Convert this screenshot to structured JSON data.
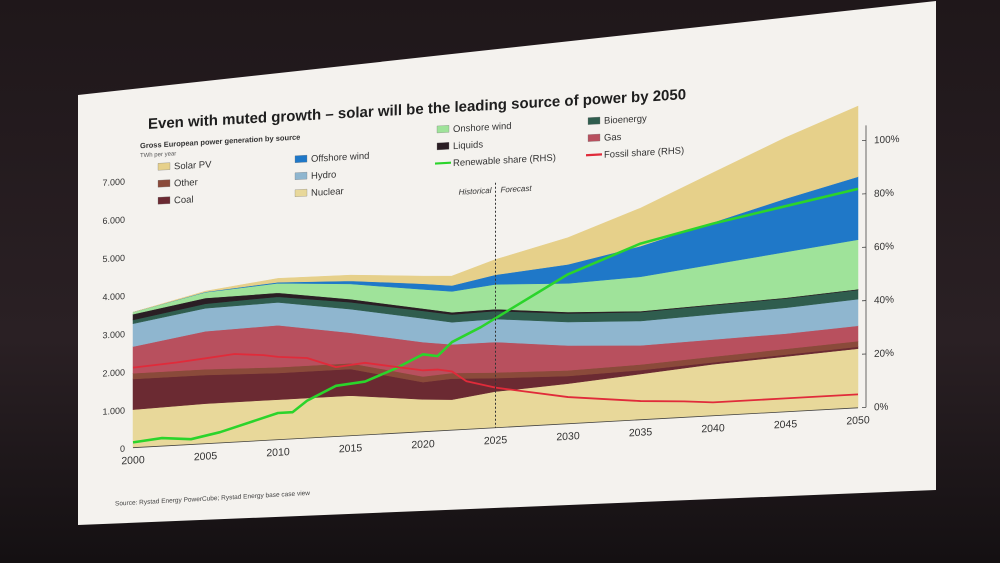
{
  "slide": {
    "title": "Even with muted growth – solar will be the leading source of power by 2050",
    "subtitle": "Gross European power generation by source",
    "unit": "TWh per year",
    "source": "Source: Rystad Energy PowerCube; Rystad Energy base case view",
    "historical_label": "Historical",
    "forecast_label": "Forecast"
  },
  "colors": {
    "nuclear": "#e8d89a",
    "coal": "#6b2a32",
    "other": "#8a4a3a",
    "gas": "#b8505e",
    "hydro": "#8fb6cf",
    "bioenergy": "#2f5d4e",
    "liquids": "#2a1e24",
    "onshore_wind": "#9fe39a",
    "offshore_wind": "#1f78c8",
    "solar_pv": "#e6d08a",
    "renewable_line": "#2bd42b",
    "fossil_line": "#e02b3a"
  },
  "chart_data": {
    "type": "area",
    "x": [
      2000,
      2005,
      2010,
      2015,
      2020,
      2022,
      2025,
      2030,
      2035,
      2040,
      2045,
      2050
    ],
    "xlim": [
      2000,
      2050
    ],
    "ylim": [
      0,
      7000
    ],
    "ylim_right": [
      0,
      100
    ],
    "x_ticks": [
      2000,
      2005,
      2010,
      2015,
      2020,
      2025,
      2030,
      2035,
      2040,
      2045,
      2050
    ],
    "y_ticks": [
      0,
      1000,
      2000,
      3000,
      4000,
      5000,
      6000,
      7000
    ],
    "y_tick_labels": [
      "0",
      "1.000",
      "2.000",
      "3.000",
      "4.000",
      "5.000",
      "6.000",
      "7.000"
    ],
    "y2_ticks": [
      0,
      20,
      40,
      60,
      80,
      100
    ],
    "y2_tick_labels": [
      "0%",
      "20%",
      "40%",
      "60%",
      "80%",
      "100%"
    ],
    "forecast_start": 2025,
    "grid": false,
    "legend_position": "top",
    "series": [
      {
        "name": "Nuclear",
        "key": "nuclear",
        "values": [
          1000,
          1050,
          1050,
          1050,
          850,
          800,
          950,
          1050,
          1200,
          1350,
          1450,
          1550
        ]
      },
      {
        "name": "Coal",
        "key": "coal",
        "values": [
          800,
          750,
          700,
          700,
          450,
          550,
          350,
          200,
          100,
          50,
          50,
          50
        ]
      },
      {
        "name": "Other",
        "key": "other",
        "values": [
          150,
          150,
          150,
          150,
          150,
          150,
          150,
          150,
          150,
          150,
          150,
          150
        ]
      },
      {
        "name": "Gas",
        "key": "gas",
        "values": [
          700,
          1000,
          1100,
          800,
          900,
          750,
          800,
          650,
          500,
          450,
          400,
          400
        ]
      },
      {
        "name": "Hydro",
        "key": "hydro",
        "values": [
          600,
          600,
          600,
          620,
          620,
          580,
          600,
          620,
          640,
          660,
          680,
          700
        ]
      },
      {
        "name": "Bioenergy",
        "key": "bioenergy",
        "values": [
          100,
          120,
          150,
          180,
          200,
          200,
          210,
          220,
          230,
          240,
          240,
          240
        ]
      },
      {
        "name": "Liquids",
        "key": "liquids",
        "values": [
          150,
          150,
          100,
          80,
          60,
          60,
          50,
          40,
          30,
          20,
          20,
          20
        ]
      },
      {
        "name": "Onshore wind",
        "key": "onshore_wind",
        "values": [
          50,
          150,
          250,
          400,
          500,
          550,
          650,
          750,
          900,
          1050,
          1200,
          1300
        ]
      },
      {
        "name": "Offshore wind",
        "key": "offshore_wind",
        "values": [
          0,
          10,
          30,
          80,
          150,
          150,
          250,
          500,
          800,
          1100,
          1400,
          1650
        ]
      },
      {
        "name": "Solar PV",
        "key": "solar_pv",
        "values": [
          0,
          20,
          100,
          150,
          200,
          250,
          400,
          700,
          1000,
          1300,
          1600,
          1850
        ]
      }
    ],
    "lines": [
      {
        "name": "Renewable share (RHS)",
        "key": "renewable_line",
        "axis": "right",
        "x": [
          2000,
          2002,
          2004,
          2006,
          2008,
          2010,
          2011,
          2012,
          2014,
          2016,
          2018,
          2020,
          2021,
          2022,
          2024,
          2026,
          2028,
          2030,
          2035,
          2040,
          2045,
          2050
        ],
        "values": [
          2,
          3,
          2,
          4,
          7,
          10,
          10,
          14,
          19,
          20,
          24,
          29,
          28,
          33,
          38,
          44,
          50,
          56,
          66,
          72,
          77,
          82
        ]
      },
      {
        "name": "Fossil share (RHS)",
        "key": "fossil_line",
        "axis": "right",
        "x": [
          2000,
          2003,
          2005,
          2007,
          2009,
          2010,
          2012,
          2014,
          2016,
          2018,
          2020,
          2021,
          2022,
          2023,
          2025,
          2030,
          2035,
          2038,
          2040,
          2045,
          2050
        ],
        "values": [
          30,
          31,
          32,
          33,
          32,
          31,
          30,
          26,
          27,
          25,
          23,
          23,
          22,
          18,
          15,
          10,
          7,
          6,
          5,
          5,
          5
        ]
      }
    ]
  }
}
